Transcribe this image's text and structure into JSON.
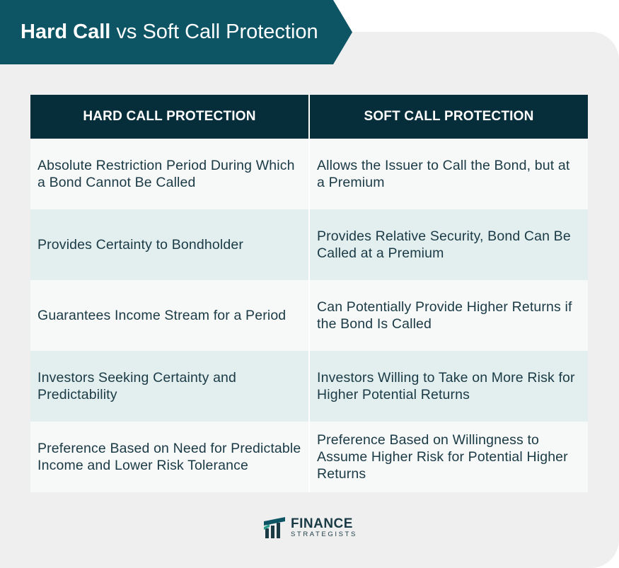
{
  "title": {
    "bold": "Hard Call",
    "rest": " vs Soft Call Protection"
  },
  "table": {
    "headers": [
      "HARD CALL PROTECTION",
      "SOFT CALL PROTECTION"
    ],
    "rows": [
      [
        "Absolute Restriction Period During Which a Bond Cannot Be Called",
        "Allows the Issuer to Call the Bond, but at a Premium"
      ],
      [
        "Provides Certainty to Bondholder",
        "Provides Relative Security, Bond Can Be Called at a Premium"
      ],
      [
        "Guarantees Income Stream for a Period",
        "Can Potentially Provide Higher Returns if the Bond Is Called"
      ],
      [
        "Investors Seeking Certainty and Predictability",
        "Investors Willing to Take on More Risk for Higher Potential Returns"
      ],
      [
        "Preference Based on Need for Predictable Income and Lower Risk Tolerance",
        "Preference Based on Willingness to Assume Higher Risk for Potential Higher Returns"
      ]
    ]
  },
  "logo": {
    "main": "FINANCE",
    "sub": "STRATEGISTS",
    "icon": "finance-strategists-logo-icon"
  },
  "colors": {
    "banner": "#0d5565",
    "header": "#062e3a",
    "row_light": "#f7f8f8",
    "row_tint": "#e3efef",
    "text": "#1a3a45",
    "background": "#efefef"
  }
}
